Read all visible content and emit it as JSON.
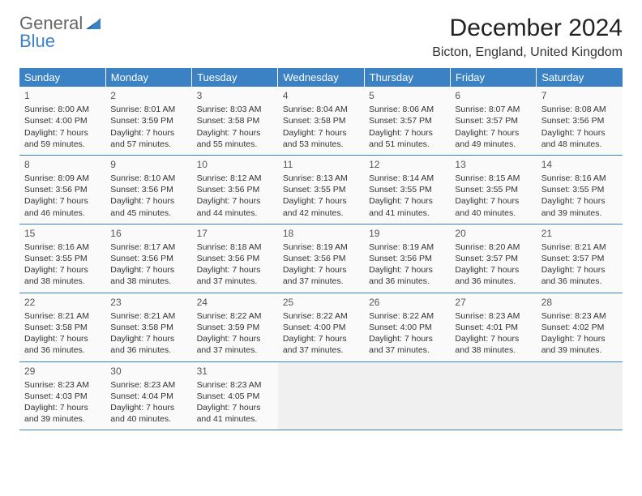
{
  "brand": {
    "w1": "General",
    "w2": "Blue"
  },
  "title": "December 2024",
  "location": "Bicton, England, United Kingdom",
  "colors": {
    "header_bg": "#3b82c4",
    "header_text": "#ffffff",
    "border": "#3b82c4",
    "cell_bg": "#fafafa",
    "blank_bg": "#f0f0f0",
    "text": "#333333"
  },
  "layout": {
    "cols": 7,
    "rows": 5
  },
  "weekdays": [
    "Sunday",
    "Monday",
    "Tuesday",
    "Wednesday",
    "Thursday",
    "Friday",
    "Saturday"
  ],
  "days": [
    {
      "n": "1",
      "sr": "8:00 AM",
      "ss": "4:00 PM",
      "dl": "7 hours and 59 minutes."
    },
    {
      "n": "2",
      "sr": "8:01 AM",
      "ss": "3:59 PM",
      "dl": "7 hours and 57 minutes."
    },
    {
      "n": "3",
      "sr": "8:03 AM",
      "ss": "3:58 PM",
      "dl": "7 hours and 55 minutes."
    },
    {
      "n": "4",
      "sr": "8:04 AM",
      "ss": "3:58 PM",
      "dl": "7 hours and 53 minutes."
    },
    {
      "n": "5",
      "sr": "8:06 AM",
      "ss": "3:57 PM",
      "dl": "7 hours and 51 minutes."
    },
    {
      "n": "6",
      "sr": "8:07 AM",
      "ss": "3:57 PM",
      "dl": "7 hours and 49 minutes."
    },
    {
      "n": "7",
      "sr": "8:08 AM",
      "ss": "3:56 PM",
      "dl": "7 hours and 48 minutes."
    },
    {
      "n": "8",
      "sr": "8:09 AM",
      "ss": "3:56 PM",
      "dl": "7 hours and 46 minutes."
    },
    {
      "n": "9",
      "sr": "8:10 AM",
      "ss": "3:56 PM",
      "dl": "7 hours and 45 minutes."
    },
    {
      "n": "10",
      "sr": "8:12 AM",
      "ss": "3:56 PM",
      "dl": "7 hours and 44 minutes."
    },
    {
      "n": "11",
      "sr": "8:13 AM",
      "ss": "3:55 PM",
      "dl": "7 hours and 42 minutes."
    },
    {
      "n": "12",
      "sr": "8:14 AM",
      "ss": "3:55 PM",
      "dl": "7 hours and 41 minutes."
    },
    {
      "n": "13",
      "sr": "8:15 AM",
      "ss": "3:55 PM",
      "dl": "7 hours and 40 minutes."
    },
    {
      "n": "14",
      "sr": "8:16 AM",
      "ss": "3:55 PM",
      "dl": "7 hours and 39 minutes."
    },
    {
      "n": "15",
      "sr": "8:16 AM",
      "ss": "3:55 PM",
      "dl": "7 hours and 38 minutes."
    },
    {
      "n": "16",
      "sr": "8:17 AM",
      "ss": "3:56 PM",
      "dl": "7 hours and 38 minutes."
    },
    {
      "n": "17",
      "sr": "8:18 AM",
      "ss": "3:56 PM",
      "dl": "7 hours and 37 minutes."
    },
    {
      "n": "18",
      "sr": "8:19 AM",
      "ss": "3:56 PM",
      "dl": "7 hours and 37 minutes."
    },
    {
      "n": "19",
      "sr": "8:19 AM",
      "ss": "3:56 PM",
      "dl": "7 hours and 36 minutes."
    },
    {
      "n": "20",
      "sr": "8:20 AM",
      "ss": "3:57 PM",
      "dl": "7 hours and 36 minutes."
    },
    {
      "n": "21",
      "sr": "8:21 AM",
      "ss": "3:57 PM",
      "dl": "7 hours and 36 minutes."
    },
    {
      "n": "22",
      "sr": "8:21 AM",
      "ss": "3:58 PM",
      "dl": "7 hours and 36 minutes."
    },
    {
      "n": "23",
      "sr": "8:21 AM",
      "ss": "3:58 PM",
      "dl": "7 hours and 36 minutes."
    },
    {
      "n": "24",
      "sr": "8:22 AM",
      "ss": "3:59 PM",
      "dl": "7 hours and 37 minutes."
    },
    {
      "n": "25",
      "sr": "8:22 AM",
      "ss": "4:00 PM",
      "dl": "7 hours and 37 minutes."
    },
    {
      "n": "26",
      "sr": "8:22 AM",
      "ss": "4:00 PM",
      "dl": "7 hours and 37 minutes."
    },
    {
      "n": "27",
      "sr": "8:23 AM",
      "ss": "4:01 PM",
      "dl": "7 hours and 38 minutes."
    },
    {
      "n": "28",
      "sr": "8:23 AM",
      "ss": "4:02 PM",
      "dl": "7 hours and 39 minutes."
    },
    {
      "n": "29",
      "sr": "8:23 AM",
      "ss": "4:03 PM",
      "dl": "7 hours and 39 minutes."
    },
    {
      "n": "30",
      "sr": "8:23 AM",
      "ss": "4:04 PM",
      "dl": "7 hours and 40 minutes."
    },
    {
      "n": "31",
      "sr": "8:23 AM",
      "ss": "4:05 PM",
      "dl": "7 hours and 41 minutes."
    }
  ],
  "labels": {
    "sunrise": "Sunrise:",
    "sunset": "Sunset:",
    "daylight": "Daylight:"
  }
}
